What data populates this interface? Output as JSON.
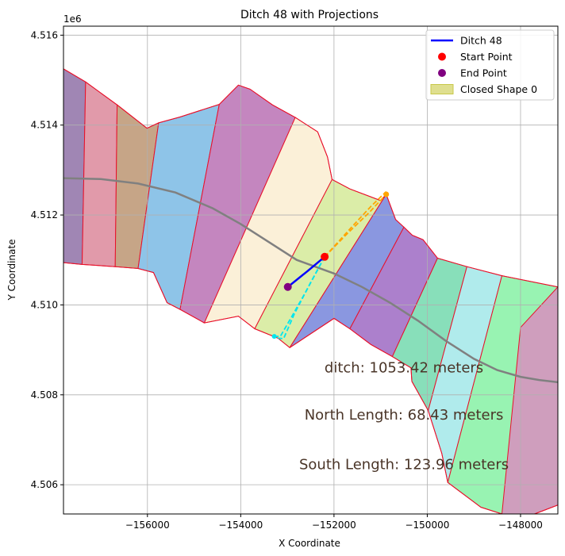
{
  "chart_data": {
    "type": "map-plot",
    "title": "Ditch 48 with Projections",
    "xlabel": "X Coordinate",
    "ylabel": "Y Coordinate",
    "offset_label": "1e6",
    "xlim": [
      -157800,
      -147200
    ],
    "ylim": [
      4.50535,
      4.5162
    ],
    "x_ticks": [
      -156000,
      -154000,
      -152000,
      -150000,
      -148000
    ],
    "x_tick_labels": [
      "−156000",
      "−154000",
      "−152000",
      "−150000",
      "−148000"
    ],
    "y_ticks": [
      4.506,
      4.508,
      4.51,
      4.512,
      4.514,
      4.516
    ],
    "y_tick_labels": [
      "4.506",
      "4.508",
      "4.510",
      "4.512",
      "4.514",
      "4.516"
    ],
    "grid": true,
    "legend_position": "top-right",
    "legend": [
      {
        "label": "Ditch 48",
        "kind": "line",
        "color": "#0000ff"
      },
      {
        "label": "Start Point",
        "kind": "marker",
        "color": "#ff0000"
      },
      {
        "label": "End Point",
        "kind": "marker",
        "color": "#800080"
      },
      {
        "label": "Closed Shape 0",
        "kind": "patch",
        "color": "#d4d46a"
      }
    ],
    "annotations": [
      {
        "text": "ditch: 1053.42 meters",
        "x": -150500,
        "y": 4.5085
      },
      {
        "text": "North Length: 68.43 meters",
        "x": -150500,
        "y": 4.50745
      },
      {
        "text": "South Length: 123.96 meters",
        "x": -150500,
        "y": 4.50635
      }
    ],
    "outline": [
      [
        -157800,
        4.51525
      ],
      [
        -157325,
        4.51496
      ],
      [
        -156650,
        4.51445
      ],
      [
        -156010,
        4.51393
      ],
      [
        -155760,
        4.51405
      ],
      [
        -155300,
        4.51418
      ],
      [
        -154460,
        4.51446
      ],
      [
        -154050,
        4.51489
      ],
      [
        -153800,
        4.5148
      ],
      [
        -153320,
        4.51445
      ],
      [
        -152830,
        4.51417
      ],
      [
        -152350,
        4.51385
      ],
      [
        -152140,
        4.51329
      ],
      [
        -152040,
        4.51279
      ],
      [
        -151660,
        4.51258
      ],
      [
        -151000,
        4.51232
      ],
      [
        -150880,
        4.51246
      ],
      [
        -150680,
        4.5119
      ],
      [
        -150500,
        4.51173
      ],
      [
        -150320,
        4.51155
      ],
      [
        -150090,
        4.51145
      ],
      [
        -149780,
        4.51104
      ],
      [
        -149150,
        4.51085
      ],
      [
        -148400,
        4.51065
      ],
      [
        -147200,
        4.5104
      ],
      [
        -147200,
        4.50555
      ],
      [
        -147700,
        4.50535
      ],
      [
        -148400,
        4.50535
      ],
      [
        -148850,
        4.5055
      ],
      [
        -149560,
        4.50605
      ],
      [
        -149690,
        4.5067
      ],
      [
        -149980,
        4.50765
      ],
      [
        -150330,
        4.5083
      ],
      [
        -150350,
        4.5086
      ],
      [
        -150750,
        4.50885
      ],
      [
        -151210,
        4.50912
      ],
      [
        -151660,
        4.50947
      ],
      [
        -152000,
        4.5097
      ],
      [
        -152950,
        4.50905
      ],
      [
        -153200,
        4.50926
      ],
      [
        -153700,
        4.50947
      ],
      [
        -154050,
        4.50975
      ],
      [
        -154780,
        4.5096
      ],
      [
        -155300,
        4.5099
      ],
      [
        -155580,
        4.51005
      ],
      [
        -155870,
        4.51072
      ],
      [
        -156200,
        4.51081
      ],
      [
        -156690,
        4.51085
      ],
      [
        -157400,
        4.5109
      ],
      [
        -157800,
        4.51094
      ]
    ],
    "strips": [
      {
        "color": "#a086b4",
        "poly": [
          [
            -157800,
            4.51525
          ],
          [
            -157325,
            4.51496
          ],
          [
            -157400,
            4.5109
          ],
          [
            -157800,
            4.51094
          ]
        ]
      },
      {
        "color": "#e19aaa",
        "poly": [
          [
            -157325,
            4.51496
          ],
          [
            -156650,
            4.51445
          ],
          [
            -156690,
            4.51085
          ],
          [
            -157400,
            4.5109
          ]
        ]
      },
      {
        "color": "#c6a587",
        "poly": [
          [
            -156650,
            4.51445
          ],
          [
            -156010,
            4.51393
          ],
          [
            -155760,
            4.51405
          ],
          [
            -156200,
            4.51081
          ],
          [
            -156690,
            4.51085
          ]
        ]
      },
      {
        "color": "#8ec4e8",
        "poly": [
          [
            -155760,
            4.51405
          ],
          [
            -155300,
            4.51418
          ],
          [
            -154460,
            4.51446
          ],
          [
            -155300,
            4.5099
          ],
          [
            -155580,
            4.51005
          ],
          [
            -155870,
            4.51072
          ],
          [
            -156200,
            4.51081
          ]
        ]
      },
      {
        "color": "#c486bf",
        "poly": [
          [
            -154460,
            4.51446
          ],
          [
            -154050,
            4.51489
          ],
          [
            -153800,
            4.5148
          ],
          [
            -153320,
            4.51445
          ],
          [
            -152830,
            4.51417
          ],
          [
            -154780,
            4.5096
          ],
          [
            -155300,
            4.5099
          ]
        ]
      },
      {
        "color": "#fbf0d8",
        "poly": [
          [
            -152830,
            4.51417
          ],
          [
            -152350,
            4.51385
          ],
          [
            -152140,
            4.51329
          ],
          [
            -152040,
            4.51279
          ],
          [
            -153700,
            4.50947
          ],
          [
            -154050,
            4.50975
          ],
          [
            -154780,
            4.5096
          ]
        ]
      },
      {
        "color": "#dbeda8",
        "poly": [
          [
            -152040,
            4.51279
          ],
          [
            -151660,
            4.51258
          ],
          [
            -151000,
            4.51232
          ],
          [
            -150880,
            4.51246
          ],
          [
            -152950,
            4.50905
          ],
          [
            -153200,
            4.50926
          ],
          [
            -153700,
            4.50947
          ]
        ]
      },
      {
        "color": "#8a97e0",
        "poly": [
          [
            -150880,
            4.51246
          ],
          [
            -150680,
            4.5119
          ],
          [
            -150500,
            4.51173
          ],
          [
            -151660,
            4.50947
          ],
          [
            -152000,
            4.5097
          ],
          [
            -152950,
            4.50905
          ]
        ]
      },
      {
        "color": "#ac80cc",
        "poly": [
          [
            -150500,
            4.51173
          ],
          [
            -150320,
            4.51155
          ],
          [
            -150090,
            4.51145
          ],
          [
            -149780,
            4.51104
          ],
          [
            -150750,
            4.50885
          ],
          [
            -151210,
            4.50912
          ],
          [
            -151660,
            4.50947
          ]
        ]
      },
      {
        "color": "#88dfba",
        "poly": [
          [
            -149780,
            4.51104
          ],
          [
            -149150,
            4.51085
          ],
          [
            -149980,
            4.50765
          ],
          [
            -150330,
            4.5083
          ],
          [
            -150350,
            4.5086
          ],
          [
            -150750,
            4.50885
          ]
        ]
      },
      {
        "color": "#b0ebec",
        "poly": [
          [
            -149150,
            4.51085
          ],
          [
            -148400,
            4.51065
          ],
          [
            -149560,
            4.50605
          ],
          [
            -149690,
            4.5067
          ],
          [
            -149980,
            4.50765
          ]
        ]
      },
      {
        "color": "#98f3b2",
        "poly": [
          [
            -148400,
            4.51065
          ],
          [
            -147200,
            4.5104
          ],
          [
            -147200,
            4.50555
          ],
          [
            -147700,
            4.50535
          ],
          [
            -148400,
            4.50535
          ],
          [
            -148850,
            4.5055
          ],
          [
            -149560,
            4.50605
          ]
        ]
      },
      {
        "color": "#cf9ebd",
        "poly": [
          [
            -147200,
            4.5104
          ],
          [
            -147200,
            4.50555
          ],
          [
            -147700,
            4.50535
          ],
          [
            -148400,
            4.50535
          ],
          [
            -148000,
            4.5095
          ]
        ]
      }
    ],
    "centerline": [
      [
        -157800,
        4.51282
      ],
      [
        -157000,
        4.5128
      ],
      [
        -156200,
        4.5127
      ],
      [
        -155400,
        4.5125
      ],
      [
        -154600,
        4.51215
      ],
      [
        -154000,
        4.5118
      ],
      [
        -153400,
        4.5114
      ],
      [
        -152800,
        4.511
      ],
      [
        -152000,
        4.5107
      ],
      [
        -151400,
        4.5104
      ],
      [
        -150800,
        4.51005
      ],
      [
        -150200,
        4.50965
      ],
      [
        -149600,
        4.5092
      ],
      [
        -149000,
        4.5088
      ],
      [
        -148500,
        4.50855
      ],
      [
        -148000,
        4.5084
      ],
      [
        -147600,
        4.50833
      ],
      [
        -147200,
        4.50828
      ]
    ],
    "ditch": [
      [
        -152200,
        4.51107
      ],
      [
        -152570,
        4.51075
      ],
      [
        -152990,
        4.5104
      ]
    ],
    "start_point": [
      -152200,
      4.51107
    ],
    "end_point": [
      -152990,
      4.5104
    ],
    "north_projection": [
      [
        -152200,
        4.51107
      ],
      [
        -151700,
        4.5116
      ],
      [
        -151250,
        4.51205
      ],
      [
        -150880,
        4.51246
      ]
    ],
    "north_projection_2": [
      [
        -152200,
        4.51107
      ],
      [
        -151650,
        4.5117
      ],
      [
        -151200,
        4.5122
      ],
      [
        -150880,
        4.51252
      ]
    ],
    "south_projection": [
      [
        -152200,
        4.51107
      ],
      [
        -152500,
        4.5105
      ],
      [
        -152850,
        4.5098
      ],
      [
        -153080,
        4.50925
      ],
      [
        -153200,
        4.50926
      ]
    ],
    "south_projection_2": [
      [
        -152200,
        4.51107
      ],
      [
        -152600,
        4.5103
      ],
      [
        -152900,
        4.50975
      ],
      [
        -153150,
        4.5093
      ],
      [
        -153280,
        4.5093
      ]
    ]
  }
}
